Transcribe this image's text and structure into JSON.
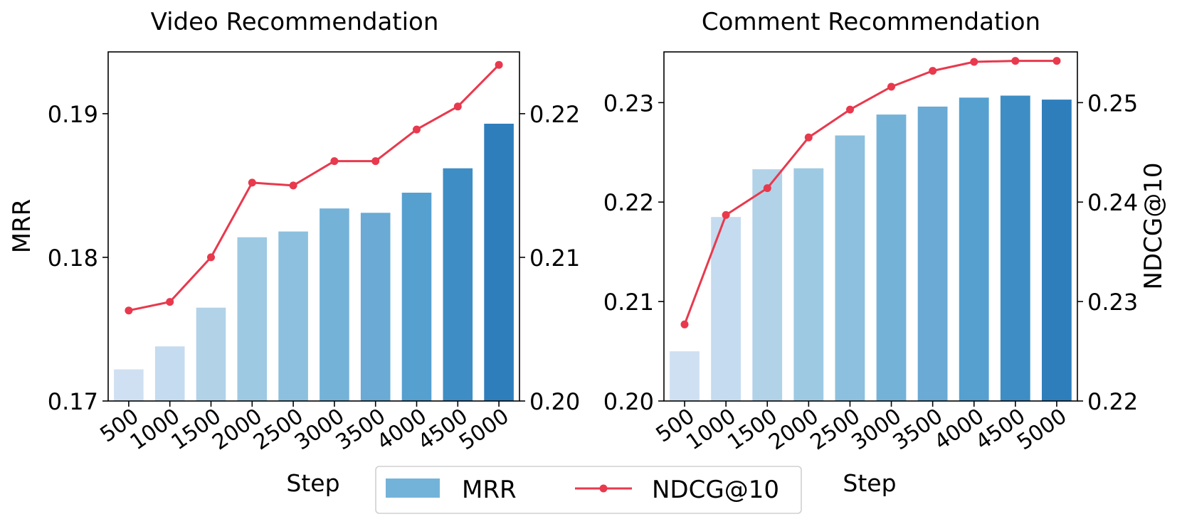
{
  "legend": {
    "bar_label": "MRR",
    "line_label": "NDCG@10"
  },
  "colors": {
    "line": "#e8394d",
    "bars": [
      "#cfe0f2",
      "#c5dbef",
      "#b2d2e8",
      "#9ec9e2",
      "#8cc0de",
      "#75b2d8",
      "#6aaad4",
      "#56a0d0",
      "#3e8dc5",
      "#2f7ebc"
    ],
    "legend_bar": "#74b3d9"
  },
  "chart_data": [
    {
      "type": "bar",
      "title": "Video Recommendation",
      "xlabel": "Step",
      "ylabel": "MRR",
      "y2label": "",
      "categories": [
        "500",
        "1000",
        "1500",
        "2000",
        "2500",
        "3000",
        "3500",
        "4000",
        "4500",
        "5000"
      ],
      "ylim": [
        0.17,
        0.1943
      ],
      "yticks": [
        "0.17",
        "0.18",
        "0.19"
      ],
      "y2lim": [
        0.2,
        0.2243
      ],
      "y2ticks": [
        "0.20",
        "0.21",
        "0.22"
      ],
      "series": [
        {
          "name": "MRR",
          "axis": "left",
          "type": "bar",
          "values": [
            0.1722,
            0.1738,
            0.1765,
            0.1814,
            0.1818,
            0.1834,
            0.1831,
            0.1845,
            0.1862,
            0.1893
          ]
        },
        {
          "name": "NDCG@10",
          "axis": "right",
          "type": "line",
          "values": [
            0.2063,
            0.2069,
            0.21,
            0.2152,
            0.215,
            0.2167,
            0.2167,
            0.2189,
            0.2205,
            0.2234
          ]
        }
      ],
      "grid": false,
      "legend": "bottom-center"
    },
    {
      "type": "bar",
      "title": "Comment Recommendation",
      "xlabel": "Step",
      "ylabel": "",
      "y2label": "NDCG@10",
      "categories": [
        "500",
        "1000",
        "1500",
        "2000",
        "2500",
        "3000",
        "3500",
        "4000",
        "4500",
        "5000"
      ],
      "ylim": [
        0.2,
        0.2351
      ],
      "yticks": [
        "0.20",
        "0.21",
        "0.22",
        "0.23"
      ],
      "y2lim": [
        0.22,
        0.2551
      ],
      "y2ticks": [
        "0.22",
        "0.23",
        "0.24",
        "0.25"
      ],
      "series": [
        {
          "name": "MRR",
          "axis": "left",
          "type": "bar",
          "values": [
            0.205,
            0.2185,
            0.2233,
            0.2234,
            0.2267,
            0.2288,
            0.2296,
            0.2305,
            0.2307,
            0.2303
          ]
        },
        {
          "name": "NDCG@10",
          "axis": "right",
          "type": "line",
          "values": [
            0.2277,
            0.2387,
            0.2414,
            0.2465,
            0.2493,
            0.2516,
            0.2532,
            0.2541,
            0.2542,
            0.2542
          ]
        }
      ],
      "grid": false,
      "legend": "bottom-center"
    }
  ]
}
